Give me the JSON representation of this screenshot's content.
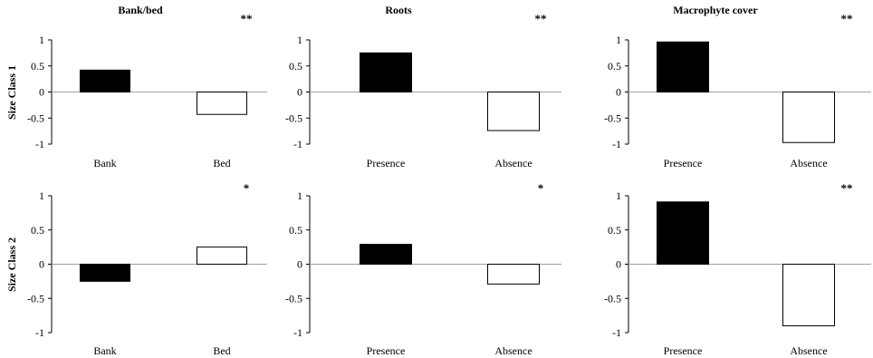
{
  "figure": {
    "column_titles": [
      "Bank/bed",
      "Roots",
      "Macrophyte cover"
    ],
    "row_labels": [
      "Size Class 1",
      "Size Class 2"
    ]
  },
  "chart_data": [
    {
      "type": "bar",
      "row": 0,
      "col": 0,
      "categories": [
        "Bank",
        "Bed"
      ],
      "values": [
        0.42,
        -0.43
      ],
      "ylim": [
        -1,
        1
      ],
      "yticks": [
        "1",
        "0.5",
        "0",
        "-0.5",
        "-1"
      ],
      "significance": "**"
    },
    {
      "type": "bar",
      "row": 0,
      "col": 1,
      "categories": [
        "Presence",
        "Absence"
      ],
      "values": [
        0.75,
        -0.74
      ],
      "ylim": [
        -1,
        1
      ],
      "yticks": [
        "1",
        "0.5",
        "0",
        "-0.5",
        "-1"
      ],
      "significance": "**"
    },
    {
      "type": "bar",
      "row": 0,
      "col": 2,
      "categories": [
        "Presence",
        "Absence"
      ],
      "values": [
        0.96,
        -0.97
      ],
      "ylim": [
        -1,
        1
      ],
      "yticks": [
        "1",
        "0.5",
        "0",
        "-0.5",
        "-1"
      ],
      "significance": "**"
    },
    {
      "type": "bar",
      "row": 1,
      "col": 0,
      "categories": [
        "Bank",
        "Bed"
      ],
      "values": [
        -0.25,
        0.25
      ],
      "ylim": [
        -1,
        1
      ],
      "yticks": [
        "1",
        "0.5",
        "0",
        "-0.5",
        "-1"
      ],
      "significance": "*"
    },
    {
      "type": "bar",
      "row": 1,
      "col": 1,
      "categories": [
        "Presence",
        "Absence"
      ],
      "values": [
        0.29,
        -0.29
      ],
      "ylim": [
        -1,
        1
      ],
      "yticks": [
        "1",
        "0.5",
        "0",
        "-0.5",
        "-1"
      ],
      "significance": "*"
    },
    {
      "type": "bar",
      "row": 1,
      "col": 2,
      "categories": [
        "Presence",
        "Absence"
      ],
      "values": [
        0.91,
        -0.9
      ],
      "ylim": [
        -1,
        1
      ],
      "yticks": [
        "1",
        "0.5",
        "0",
        "-0.5",
        "-1"
      ],
      "significance": "**"
    }
  ],
  "colors": {
    "bar_first": "#000000",
    "bar_second": "#ffffff",
    "axis": "#000000",
    "zero_line": "#a0a0a0"
  }
}
